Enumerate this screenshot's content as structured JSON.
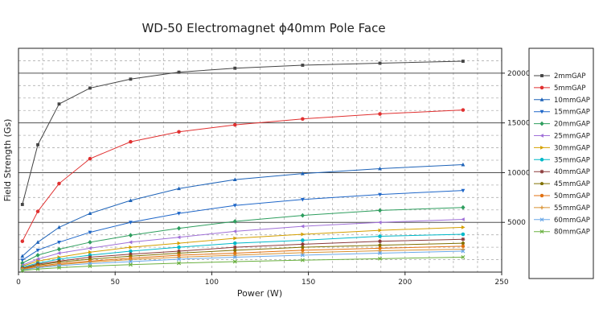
{
  "chart_data": {
    "type": "line",
    "title": "WD-50 Electromagnet ϕ40mm Pole Face",
    "xlabel": "Power (W)",
    "ylabel": "Field Strength (Gs)",
    "xlim": [
      0,
      250
    ],
    "ylim": [
      0,
      22500
    ],
    "x_ticks": [
      "0",
      "50",
      "100",
      "150",
      "200",
      "250"
    ],
    "y_ticks": [
      "5000",
      "10000",
      "15000",
      "20000"
    ],
    "grid": true,
    "legend_position": "right",
    "x": [
      2,
      10,
      21,
      37,
      58,
      83,
      112,
      147,
      187,
      230
    ],
    "series": [
      {
        "name": "2mmGAP",
        "color": "#444444",
        "marker": "square",
        "values": [
          6800,
          12800,
          16900,
          18500,
          19400,
          20100,
          20500,
          20800,
          21000,
          21200
        ]
      },
      {
        "name": "5mmGAP",
        "color": "#e03030",
        "marker": "circle",
        "values": [
          3100,
          6100,
          8900,
          11400,
          13100,
          14100,
          14800,
          15400,
          15900,
          16300
        ]
      },
      {
        "name": "10mmGAP",
        "color": "#1e63b8",
        "marker": "triangle-up",
        "values": [
          1600,
          3000,
          4500,
          5900,
          7200,
          8400,
          9300,
          9900,
          10400,
          10800
        ]
      },
      {
        "name": "15mmGAP",
        "color": "#1e66c8",
        "marker": "triangle-down",
        "values": [
          1200,
          2200,
          3000,
          4000,
          5000,
          5900,
          6700,
          7300,
          7800,
          8200
        ]
      },
      {
        "name": "20mmGAP",
        "color": "#2e9e5e",
        "marker": "diamond",
        "values": [
          900,
          1700,
          2300,
          3000,
          3700,
          4400,
          5100,
          5700,
          6200,
          6500
        ]
      },
      {
        "name": "25mmGAP",
        "color": "#a070d8",
        "marker": "triangle-left",
        "values": [
          700,
          1300,
          1900,
          2400,
          3000,
          3500,
          4100,
          4600,
          5000,
          5300
        ]
      },
      {
        "name": "30mmGAP",
        "color": "#d4a000",
        "marker": "triangle-right",
        "values": [
          600,
          1100,
          1500,
          2000,
          2500,
          2900,
          3400,
          3800,
          4200,
          4500
        ]
      },
      {
        "name": "35mmGAP",
        "color": "#00b8c8",
        "marker": "circle",
        "values": [
          500,
          900,
          1300,
          1700,
          2100,
          2500,
          2900,
          3200,
          3600,
          3800
        ]
      },
      {
        "name": "40mmGAP",
        "color": "#8b3a3a",
        "marker": "star",
        "values": [
          400,
          800,
          1100,
          1500,
          1800,
          2100,
          2500,
          2800,
          3100,
          3300
        ]
      },
      {
        "name": "45mmGAP",
        "color": "#807000",
        "marker": "pentagon",
        "values": [
          350,
          700,
          1000,
          1300,
          1600,
          1900,
          2200,
          2500,
          2700,
          2900
        ]
      },
      {
        "name": "50mmGAP",
        "color": "#e07010",
        "marker": "hexagon",
        "values": [
          300,
          600,
          850,
          1100,
          1400,
          1700,
          1900,
          2200,
          2400,
          2600
        ]
      },
      {
        "name": "55mmGAP",
        "color": "#d89030",
        "marker": "plus",
        "values": [
          250,
          500,
          750,
          1000,
          1250,
          1500,
          1700,
          1950,
          2150,
          2300
        ]
      },
      {
        "name": "60mmGAP",
        "color": "#6aa8e8",
        "marker": "x",
        "values": [
          200,
          450,
          650,
          850,
          1050,
          1300,
          1500,
          1700,
          1900,
          2100
        ]
      },
      {
        "name": "80mmGAP",
        "color": "#6ab040",
        "marker": "x",
        "values": [
          150,
          300,
          450,
          600,
          750,
          900,
          1050,
          1200,
          1350,
          1500
        ]
      }
    ]
  }
}
